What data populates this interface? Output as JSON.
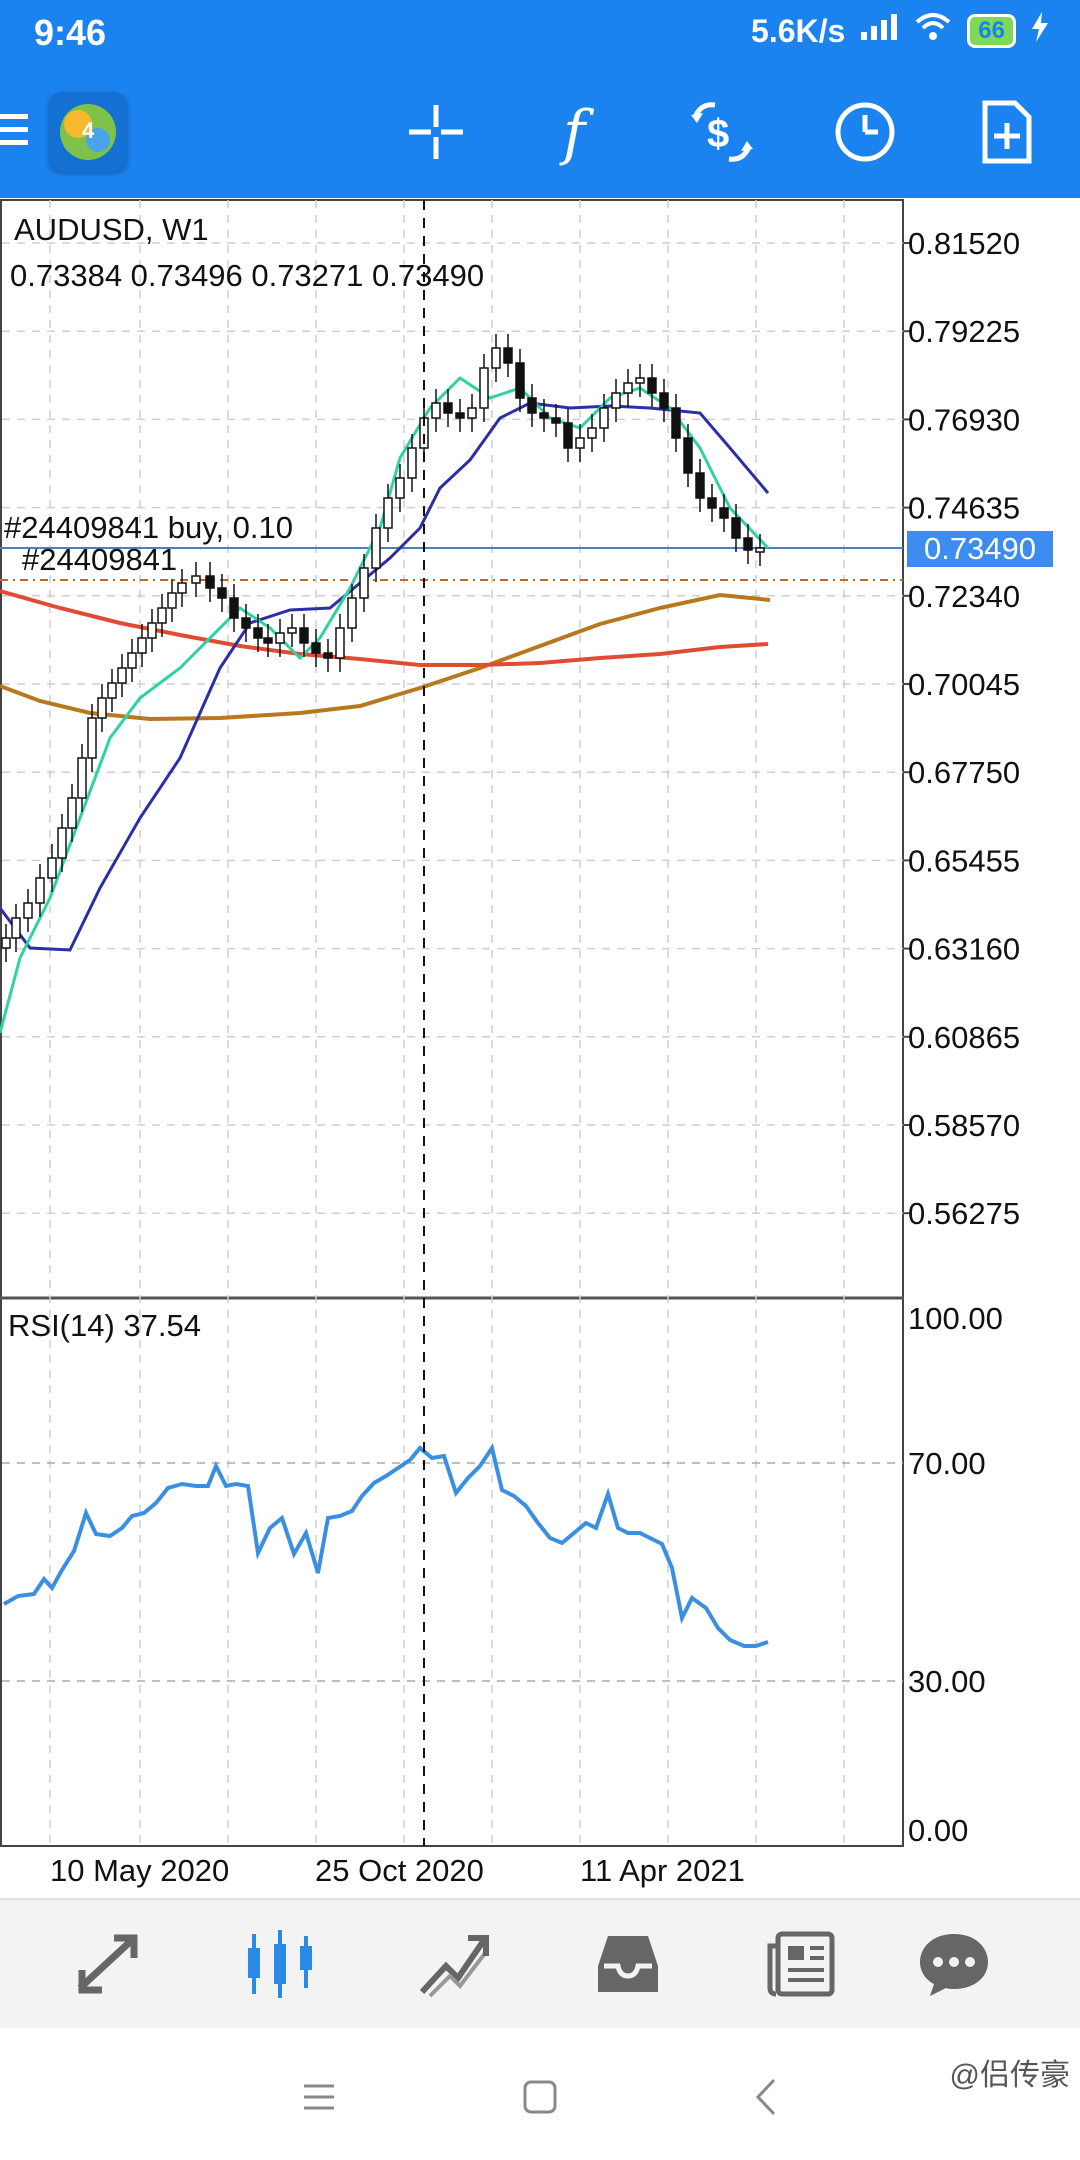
{
  "status_bar": {
    "time": "9:46",
    "net_speed": "5.6K/s",
    "battery": "66"
  },
  "toolbar": {
    "icons": [
      "menu-icon",
      "metatrader-logo",
      "crosshair-icon",
      "indicators-icon",
      "trade-icon",
      "timeframe-icon",
      "new-order-icon"
    ]
  },
  "chart": {
    "symbol_label": "AUDUSD, W1",
    "ohlc_label": "0.73384 0.73496 0.73271 0.73490",
    "current_price": "0.73490",
    "order_line_1": "#24409841 buy, 0.10",
    "order_line_2": "#24409841",
    "price_axis": [
      "0.81520",
      "0.79225",
      "0.76930",
      "0.74635",
      "0.72340",
      "0.70045",
      "0.67750",
      "0.65455",
      "0.63160",
      "0.60865",
      "0.58570",
      "0.56275"
    ],
    "rsi_label": "RSI(14) 37.54",
    "rsi_axis": [
      "100.00",
      "70.00",
      "30.00",
      "0.00"
    ],
    "date_axis": [
      "10 May 2020",
      "25 Oct 2020",
      "11 Apr 2021"
    ]
  },
  "colors": {
    "header": "#1a83f0",
    "ma_fast": "#2ed3a4",
    "ma_mid": "#2b2fa6",
    "ma_slow_red": "#e14b33",
    "ma_slow_brown": "#b7781e",
    "rsi": "#3b8fe0"
  },
  "bottom_nav": {
    "items": [
      "quotes-icon",
      "chart-icon",
      "trade-icon",
      "history-icon",
      "news-icon",
      "messages-icon"
    ]
  },
  "watermark": "@侣传豪"
}
